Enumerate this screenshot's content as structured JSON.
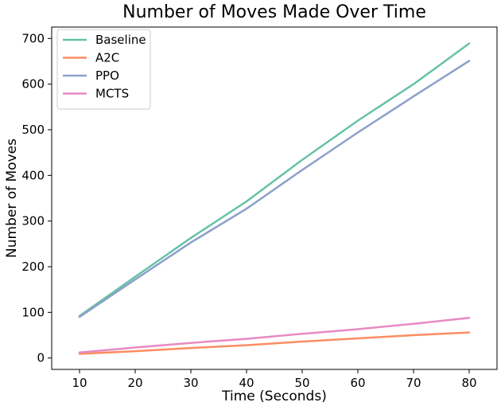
{
  "chart_data": {
    "type": "line",
    "title": "Number of Moves Made Over Time",
    "xlabel": "Time (Seconds)",
    "ylabel": "Number of Moves",
    "x": [
      10,
      20,
      30,
      40,
      50,
      60,
      70,
      80
    ],
    "xlim": [
      5,
      85
    ],
    "ylim": [
      -25,
      725
    ],
    "xticks": [
      10,
      20,
      30,
      40,
      50,
      60,
      70,
      80
    ],
    "yticks": [
      0,
      100,
      200,
      300,
      400,
      500,
      600,
      700
    ],
    "grid": false,
    "legend_position": "top-left",
    "series": [
      {
        "name": "Baseline",
        "color": "#66c2a5",
        "values": [
          92,
          178,
          263,
          343,
          434,
          520,
          600,
          689
        ]
      },
      {
        "name": "A2C",
        "color": "#fc8d62",
        "values": [
          9,
          15,
          22,
          28,
          36,
          43,
          50,
          56
        ]
      },
      {
        "name": "PPO",
        "color": "#8da0cb",
        "values": [
          90,
          172,
          253,
          327,
          412,
          494,
          573,
          651
        ]
      },
      {
        "name": "MCTS",
        "color": "#e78ac3",
        "values": [
          12,
          23,
          33,
          42,
          53,
          63,
          75,
          88
        ]
      }
    ]
  }
}
